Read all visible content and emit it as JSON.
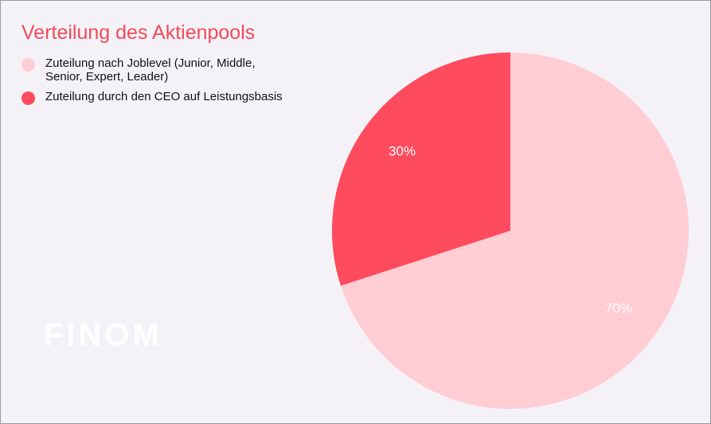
{
  "brand": "FINOM",
  "chart_data": {
    "type": "pie",
    "title": "Verteilung des Aktienpools",
    "categories": [
      "Zuteilung nach Joblevel (Junior, Middle, Senior, Expert, Leader)",
      "Zuteilung durch den CEO auf Leistungsbasis"
    ],
    "values": [
      70,
      30
    ],
    "value_labels": [
      "70%",
      "30%"
    ],
    "colors": [
      "#ffcdd4",
      "#ff4b5e"
    ]
  }
}
